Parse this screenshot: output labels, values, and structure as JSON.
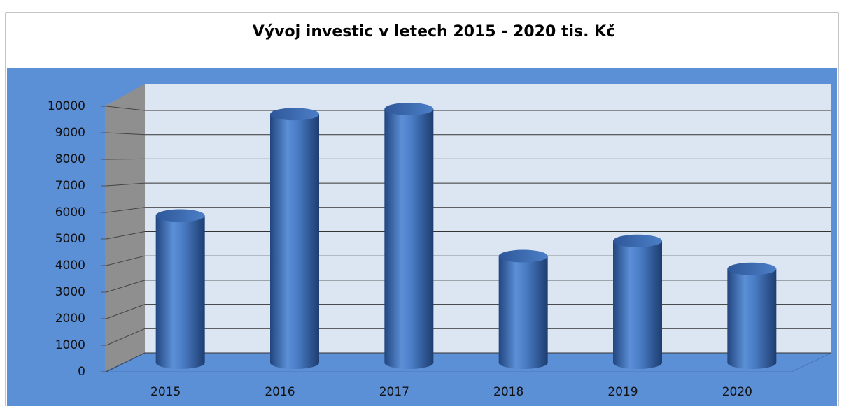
{
  "chart_data": {
    "type": "bar",
    "title": "Vývoj investic v letech 2015 - 2020 tis. Kč",
    "categories": [
      "2015",
      "2016",
      "2017",
      "2018",
      "2019",
      "2020"
    ],
    "values": [
      5800,
      9800,
      10000,
      4200,
      4800,
      3700
    ],
    "color": "#3f74c0",
    "ylim": [
      0,
      10000
    ],
    "yticks": [
      0,
      1000,
      2000,
      3000,
      4000,
      5000,
      6000,
      7000,
      8000,
      9000,
      10000
    ],
    "grid": true
  }
}
